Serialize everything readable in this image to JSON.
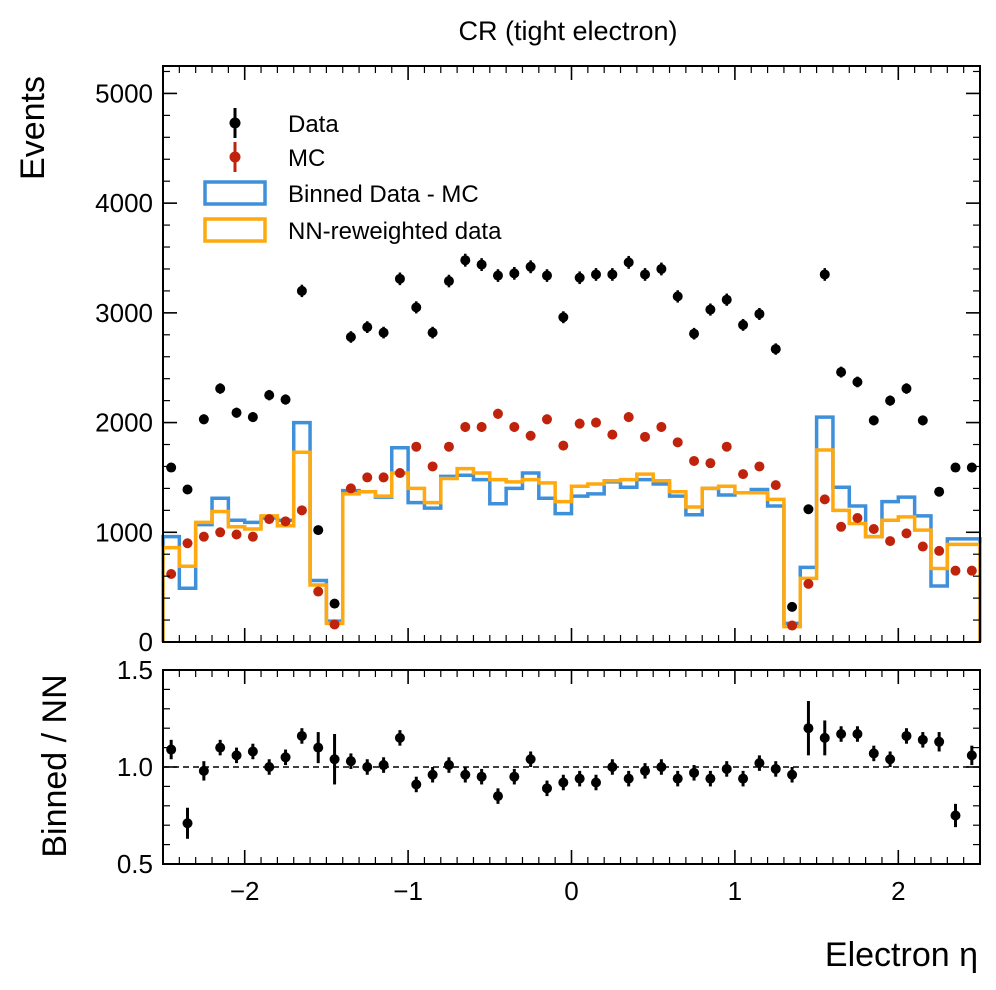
{
  "chart_data": [
    {
      "type": "scatter",
      "title": "CR (tight electron)",
      "xlabel": "",
      "ylabel": "Events",
      "xlim": [
        -2.5,
        2.5
      ],
      "ylim": [
        0,
        5250
      ],
      "yticks": [
        0,
        1000,
        2000,
        3000,
        4000,
        5000
      ],
      "grid": false,
      "legend_position": "upper-left",
      "bin_edges": [
        -2.5,
        -2.4,
        -2.3,
        -2.2,
        -2.1,
        -2.0,
        -1.9,
        -1.8,
        -1.7,
        -1.6,
        -1.5,
        -1.4,
        -1.3,
        -1.2,
        -1.1,
        -1.0,
        -0.9,
        -0.8,
        -0.7,
        -0.6,
        -0.5,
        -0.4,
        -0.3,
        -0.2,
        -0.1,
        0.0,
        0.1,
        0.2,
        0.3,
        0.4,
        0.5,
        0.6,
        0.7,
        0.8,
        0.9,
        1.0,
        1.1,
        1.2,
        1.3,
        1.4,
        1.5,
        1.6,
        1.7,
        1.8,
        1.9,
        2.0,
        2.1,
        2.2,
        2.3,
        2.4,
        2.5
      ],
      "series": [
        {
          "name": "Data",
          "kind": "points",
          "color": "#000000",
          "values": [
            1590,
            1390,
            2030,
            2310,
            2090,
            2050,
            2250,
            2210,
            3200,
            1020,
            350,
            2780,
            2870,
            2820,
            3310,
            3050,
            2820,
            3290,
            3480,
            3440,
            3340,
            3360,
            3420,
            3340,
            2960,
            3320,
            3350,
            3350,
            3460,
            3350,
            3400,
            3150,
            2810,
            3030,
            3120,
            2890,
            2990,
            2670,
            320,
            1210,
            3350,
            2460,
            2370,
            2020,
            2200,
            2310,
            2020,
            1370,
            1590,
            1590
          ]
        },
        {
          "name": "MC",
          "kind": "points",
          "color": "#c0230c",
          "values": [
            620,
            900,
            960,
            1000,
            980,
            960,
            1120,
            1100,
            1200,
            460,
            160,
            1400,
            1500,
            1500,
            1540,
            1780,
            1600,
            1780,
            1960,
            1960,
            2080,
            1960,
            1880,
            2030,
            1790,
            1990,
            2000,
            1890,
            2050,
            1870,
            1960,
            1820,
            1650,
            1630,
            1780,
            1530,
            1600,
            1430,
            150,
            530,
            1300,
            1050,
            1130,
            1030,
            920,
            990,
            870,
            830,
            650,
            650
          ]
        },
        {
          "name": "Binned Data - MC",
          "kind": "step",
          "color": "#3f90da",
          "values": [
            960,
            490,
            1070,
            1310,
            1110,
            1090,
            1130,
            1110,
            2000,
            560,
            190,
            1380,
            1370,
            1320,
            1770,
            1270,
            1220,
            1510,
            1520,
            1480,
            1260,
            1400,
            1540,
            1310,
            1170,
            1330,
            1350,
            1460,
            1410,
            1480,
            1440,
            1330,
            1160,
            1400,
            1340,
            1360,
            1390,
            1240,
            170,
            680,
            2050,
            1410,
            1240,
            960,
            1280,
            1320,
            1150,
            510,
            940,
            940
          ]
        },
        {
          "name": "NN-reweighted data",
          "kind": "step",
          "color": "#ffa90e",
          "values": [
            860,
            690,
            1090,
            1190,
            1050,
            1030,
            1150,
            1060,
            1730,
            520,
            170,
            1350,
            1370,
            1330,
            1540,
            1400,
            1270,
            1490,
            1580,
            1540,
            1480,
            1460,
            1480,
            1450,
            1280,
            1420,
            1440,
            1470,
            1480,
            1530,
            1470,
            1370,
            1230,
            1400,
            1420,
            1360,
            1360,
            1300,
            140,
            580,
            1750,
            1200,
            1080,
            960,
            1110,
            1140,
            1020,
            670,
            890,
            890
          ]
        }
      ]
    },
    {
      "type": "scatter",
      "title": "",
      "xlabel": "Electron η",
      "ylabel": "Binned / NN",
      "xlim": [
        -2.5,
        2.5
      ],
      "ylim": [
        0.5,
        1.5
      ],
      "xticks": [
        -2,
        -1,
        0,
        1,
        2
      ],
      "xtick_labels": [
        "−2",
        "−1",
        "0",
        "1",
        "2"
      ],
      "yticks": [
        0.5,
        1.0,
        1.5
      ],
      "ytick_labels": [
        "0.5",
        "1.0",
        "1.5"
      ],
      "reference_line": 1.0,
      "grid": false,
      "series": [
        {
          "name": "",
          "kind": "points",
          "color": "#000000",
          "x": [
            -2.45,
            -2.35,
            -2.25,
            -2.15,
            -2.05,
            -1.95,
            -1.85,
            -1.75,
            -1.65,
            -1.55,
            -1.45,
            -1.35,
            -1.25,
            -1.15,
            -1.05,
            -0.95,
            -0.85,
            -0.75,
            -0.65,
            -0.55,
            -0.45,
            -0.35,
            -0.25,
            -0.15,
            -0.05,
            0.05,
            0.15,
            0.25,
            0.35,
            0.45,
            0.55,
            0.65,
            0.75,
            0.85,
            0.95,
            1.05,
            1.15,
            1.25,
            1.35,
            1.45,
            1.55,
            1.65,
            1.75,
            1.85,
            1.95,
            2.05,
            2.15,
            2.25,
            2.35,
            2.45
          ],
          "values": [
            1.09,
            0.71,
            0.98,
            1.1,
            1.06,
            1.08,
            1.0,
            1.05,
            1.16,
            1.1,
            1.04,
            1.03,
            1.0,
            1.01,
            1.15,
            0.91,
            0.96,
            1.01,
            0.96,
            0.95,
            0.85,
            0.95,
            1.04,
            0.89,
            0.92,
            0.94,
            0.92,
            1.0,
            0.94,
            0.98,
            1.0,
            0.94,
            0.97,
            0.94,
            0.99,
            0.94,
            1.02,
            0.99,
            0.96,
            1.2,
            1.15,
            1.17,
            1.17,
            1.07,
            1.04,
            1.16,
            1.14,
            1.13,
            0.75,
            1.06
          ],
          "errors": [
            0.05,
            0.08,
            0.05,
            0.04,
            0.04,
            0.04,
            0.04,
            0.04,
            0.04,
            0.08,
            0.13,
            0.04,
            0.04,
            0.04,
            0.04,
            0.04,
            0.04,
            0.04,
            0.04,
            0.04,
            0.04,
            0.04,
            0.04,
            0.04,
            0.04,
            0.04,
            0.04,
            0.04,
            0.04,
            0.04,
            0.04,
            0.04,
            0.04,
            0.04,
            0.04,
            0.04,
            0.04,
            0.04,
            0.04,
            0.14,
            0.09,
            0.04,
            0.04,
            0.04,
            0.04,
            0.04,
            0.04,
            0.05,
            0.06,
            0.05
          ]
        }
      ]
    }
  ]
}
